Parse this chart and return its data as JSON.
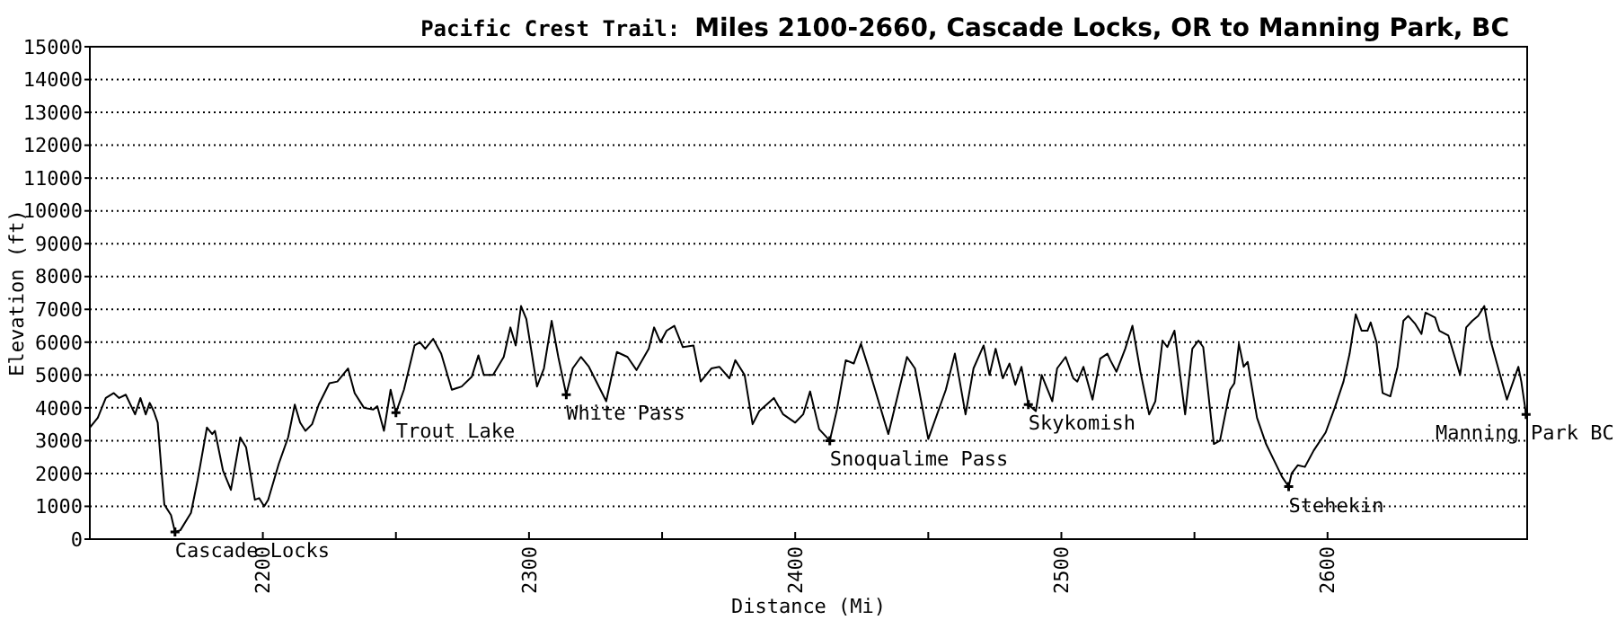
{
  "chart_data": {
    "type": "line",
    "title": "Pacific Crest Trail:",
    "subtitle": "Miles 2100-2660, Cascade Locks, OR to Manning Park, BC",
    "xlabel": "Distance (Mi)",
    "ylabel": "Elevation (ft)",
    "xlim": [
      2135,
      2675
    ],
    "xticks": [
      2200,
      {
        "value": 2250,
        "label": null
      },
      2300,
      {
        "value": 2350,
        "label": null
      },
      2400,
      {
        "value": 2450,
        "label": null
      },
      2500,
      {
        "value": 2550,
        "label": null
      },
      2600
    ],
    "ylim": [
      0,
      15000
    ],
    "yticks": [
      0,
      1000,
      2000,
      3000,
      4000,
      5000,
      6000,
      7000,
      8000,
      9000,
      10000,
      11000,
      12000,
      13000,
      14000,
      15000
    ],
    "grid": "y",
    "line_style": "solid",
    "series": [
      {
        "color": "#000000",
        "x": [
          2135,
          2138,
          2141,
          2144,
          2146,
          2148.5,
          2152,
          2154,
          2156,
          2157.5,
          2159,
          2160.5,
          2162,
          2163,
          2165.5,
          2167,
          2169,
          2173,
          2175.5,
          2179,
          2181,
          2182,
          2185,
          2188,
          2191.5,
          2193.7,
          2197,
          2198.6,
          2200.5,
          2202,
          2206,
          2209.5,
          2212,
          2214,
          2216,
          2218.5,
          2221,
          2225,
          2228,
          2230,
          2232,
          2234.5,
          2238,
          2241.5,
          2243,
          2245.5,
          2248,
          2250,
          2253,
          2257,
          2259,
          2261,
          2264,
          2267,
          2271,
          2274.7,
          2278.5,
          2281,
          2283,
          2286.5,
          2290.5,
          2293,
          2295,
          2297,
          2299,
          2303,
          2305.6,
          2308.5,
          2311,
          2314,
          2316.4,
          2319.5,
          2322.5,
          2329,
          2333,
          2337,
          2340.4,
          2345,
          2347,
          2349.4,
          2351.7,
          2354.6,
          2357.8,
          2361.8,
          2364.5,
          2368.5,
          2371.5,
          2375.3,
          2377.5,
          2381,
          2384,
          2386.5,
          2392,
          2395.5,
          2400,
          2403,
          2405.6,
          2409,
          2413,
          2415.7,
          2419,
          2422,
          2424.7,
          2428,
          2435,
          2438,
          2442,
          2445,
          2450,
          2456.6,
          2460,
          2464,
          2467,
          2470.8,
          2473,
          2475.3,
          2478,
          2480.5,
          2482.7,
          2485,
          2487.6,
          2490.4,
          2492.6,
          2496.6,
          2498.4,
          2501.6,
          2504.5,
          2506,
          2508.3,
          2511.7,
          2514.6,
          2517.3,
          2518.4,
          2520.7,
          2524,
          2526.7,
          2529.7,
          2533,
          2535.3,
          2538,
          2539.8,
          2542.5,
          2546.5,
          2549.2,
          2551.5,
          2553.3,
          2557.3,
          2559.6,
          2563.4,
          2565,
          2566.7,
          2568.5,
          2570,
          2573.5,
          2576.9,
          2580.2,
          2582.9,
          2585.4,
          2586.5,
          2588.8,
          2591.5,
          2594.8,
          2599.3,
          2602.7,
          2606,
          2608.3,
          2610.6,
          2612.8,
          2615,
          2616.2,
          2618.4,
          2620.7,
          2623.6,
          2626.3,
          2628.5,
          2630.3,
          2633,
          2635.3,
          2636.8,
          2640.4,
          2642,
          2645.4,
          2649.8,
          2652.1,
          2654.4,
          2656.6,
          2658.9,
          2661.1,
          2667.4,
          2671.7,
          2672.8,
          2674.6
        ],
        "values": [
          3400,
          3700,
          4300,
          4450,
          4300,
          4400,
          3800,
          4300,
          3800,
          4150,
          3900,
          3550,
          2000,
          1050,
          730,
          220,
          270,
          800,
          1800,
          3400,
          3200,
          3300,
          2100,
          1500,
          3100,
          2800,
          1200,
          1250,
          1000,
          1200,
          2300,
          3100,
          4100,
          3550,
          3300,
          3500,
          4100,
          4750,
          4800,
          5000,
          5200,
          4450,
          4000,
          3950,
          4050,
          3300,
          4550,
          3850,
          4550,
          5900,
          6000,
          5800,
          6100,
          5650,
          4550,
          4650,
          4950,
          5600,
          5000,
          5000,
          5550,
          6450,
          5900,
          7100,
          6700,
          4650,
          5200,
          6650,
          5550,
          4400,
          5200,
          5550,
          5250,
          4200,
          5700,
          5550,
          5150,
          5800,
          6450,
          6000,
          6350,
          6500,
          5850,
          5900,
          4800,
          5200,
          5250,
          4900,
          5450,
          5000,
          3500,
          3900,
          4300,
          3800,
          3550,
          3800,
          4500,
          3350,
          3000,
          3950,
          5450,
          5350,
          5950,
          5100,
          3200,
          4200,
          5550,
          5200,
          3050,
          4550,
          5650,
          3800,
          5200,
          5900,
          5000,
          5800,
          4900,
          5350,
          4700,
          5250,
          4100,
          3900,
          5000,
          4200,
          5200,
          5550,
          4900,
          4800,
          5250,
          4250,
          5500,
          5650,
          5450,
          5100,
          5800,
          6500,
          5100,
          3800,
          4200,
          6050,
          5850,
          6350,
          3800,
          5800,
          6050,
          5850,
          2900,
          3000,
          4550,
          4750,
          5950,
          5250,
          5400,
          3700,
          2900,
          2350,
          1900,
          1600,
          2000,
          2250,
          2200,
          2700,
          3250,
          4000,
          4800,
          5650,
          6850,
          6350,
          6350,
          6600,
          6000,
          4450,
          4350,
          5250,
          6650,
          6800,
          6550,
          6250,
          6900,
          6750,
          6350,
          6200,
          5000,
          6450,
          6650,
          6800,
          7100,
          6100,
          4250,
          5250,
          4800,
          3800
        ]
      }
    ],
    "annotations": [
      {
        "text": "Cascade Locks",
        "x": 2167,
        "y": 220
      },
      {
        "text": "Trout Lake",
        "x": 2250,
        "y": 3850
      },
      {
        "text": "White Pass",
        "x": 2314,
        "y": 4400
      },
      {
        "text": "Snoqualime Pass",
        "x": 2413,
        "y": 3000
      },
      {
        "text": "Skykomish",
        "x": 2487.6,
        "y": 4100
      },
      {
        "text": "Stehekin",
        "x": 2585.4,
        "y": 1600
      },
      {
        "text": "Manning Park BC",
        "x": 2674.6,
        "y": 3800
      }
    ]
  }
}
